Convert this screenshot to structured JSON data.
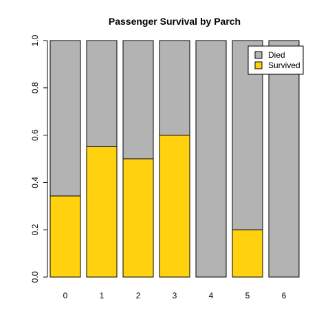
{
  "chart_data": {
    "type": "bar",
    "stacked": true,
    "normalized": true,
    "title": "Passenger Survival by Parch",
    "xlabel": "",
    "ylabel": "",
    "ylim": [
      0,
      1
    ],
    "y_ticks": [
      "0.0",
      "0.2",
      "0.4",
      "0.6",
      "0.8",
      "1.0"
    ],
    "categories": [
      "0",
      "1",
      "2",
      "3",
      "4",
      "5",
      "6"
    ],
    "series": [
      {
        "name": "Died",
        "color": "#b3b3b3",
        "values": [
          0.657,
          0.449,
          0.5,
          0.4,
          1.0,
          0.8,
          1.0
        ]
      },
      {
        "name": "Survived",
        "color": "#ffd10f",
        "values": [
          0.343,
          0.551,
          0.5,
          0.6,
          0.0,
          0.2,
          0.0
        ]
      }
    ],
    "legend": {
      "position": "top-right",
      "items": [
        {
          "label": "Died",
          "color": "#b3b3b3"
        },
        {
          "label": "Survived",
          "color": "#ffd10f"
        }
      ]
    },
    "grid": false
  }
}
